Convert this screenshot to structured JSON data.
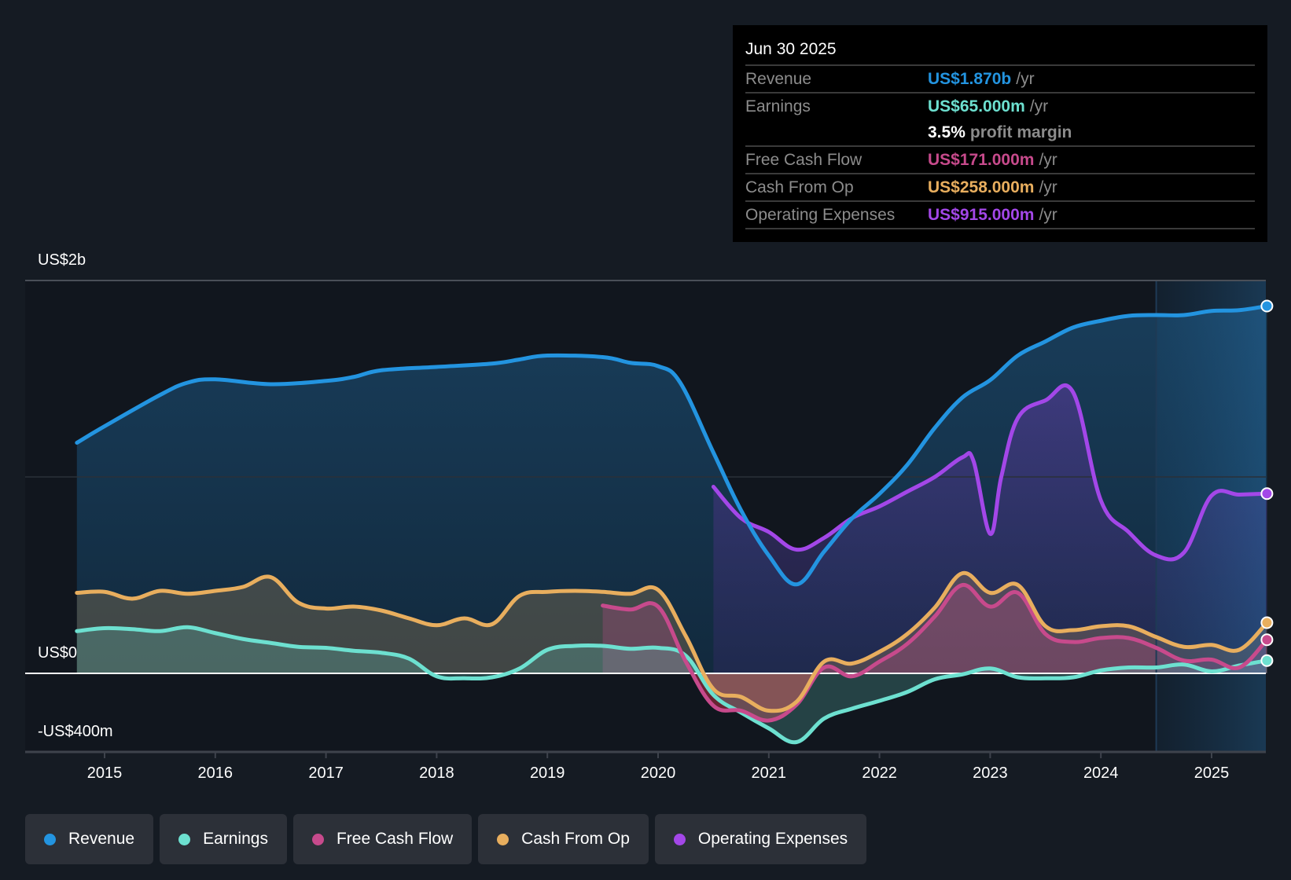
{
  "tooltip": {
    "date": "Jun 30 2025",
    "rows": [
      {
        "label": "Revenue",
        "value": "US$1.870b",
        "unit": "/yr",
        "color": "#2394e0"
      },
      {
        "label": "Earnings",
        "value": "US$65.000m",
        "unit": "/yr",
        "color": "#6de0d0"
      },
      {
        "label": "Free Cash Flow",
        "value": "US$171.000m",
        "unit": "/yr",
        "color": "#c74a8c"
      },
      {
        "label": "Cash From Op",
        "value": "US$258.000m",
        "unit": "/yr",
        "color": "#e8ae5e"
      },
      {
        "label": "Operating Expenses",
        "value": "US$915.000m",
        "unit": "/yr",
        "color": "#a347e8"
      }
    ],
    "margin_value": "3.5%",
    "margin_label": "profit margin"
  },
  "legend": [
    {
      "label": "Revenue",
      "color": "#2394e0"
    },
    {
      "label": "Earnings",
      "color": "#6de0d0"
    },
    {
      "label": "Free Cash Flow",
      "color": "#c74a8c"
    },
    {
      "label": "Cash From Op",
      "color": "#e8ae5e"
    },
    {
      "label": "Operating Expenses",
      "color": "#a347e8"
    }
  ],
  "chart_data": {
    "type": "area",
    "title": "",
    "xlabel": "",
    "ylabel": "",
    "y_tick_labels": [
      "US$2b",
      "US$0",
      "-US$400m"
    ],
    "ylim": [
      -400,
      2000
    ],
    "y_units": "US$ millions",
    "x_tick_labels": [
      "2015",
      "2016",
      "2017",
      "2018",
      "2019",
      "2020",
      "2021",
      "2022",
      "2023",
      "2024",
      "2025"
    ],
    "xlim": [
      2014.3,
      2025.5
    ],
    "highlight_range": [
      2024.5,
      2025.5
    ],
    "grid": true,
    "legend_position": "bottom-left",
    "series": [
      {
        "name": "Revenue",
        "color": "#2394e0",
        "x": [
          2014.75,
          2015.0,
          2015.5,
          2015.75,
          2016.0,
          2016.5,
          2017.0,
          2017.25,
          2017.5,
          2018.0,
          2018.5,
          2018.75,
          2019.0,
          2019.5,
          2019.75,
          2020.0,
          2020.2,
          2020.5,
          2020.75,
          2021.0,
          2021.25,
          2021.5,
          2021.75,
          2022.0,
          2022.25,
          2022.5,
          2022.75,
          2023.0,
          2023.25,
          2023.5,
          2023.75,
          2024.0,
          2024.25,
          2024.5,
          2024.75,
          2025.0,
          2025.25,
          2025.5
        ],
        "values": [
          1174,
          1258,
          1417,
          1480,
          1497,
          1472,
          1489,
          1509,
          1543,
          1560,
          1577,
          1598,
          1618,
          1610,
          1581,
          1564,
          1480,
          1124,
          830,
          600,
          453,
          620,
          788,
          914,
          1061,
          1250,
          1405,
          1493,
          1618,
          1690,
          1761,
          1795,
          1820,
          1824,
          1824,
          1845,
          1849,
          1870
        ]
      },
      {
        "name": "Earnings",
        "color": "#6de0d0",
        "x": [
          2014.75,
          2015.0,
          2015.25,
          2015.5,
          2015.75,
          2016.0,
          2016.25,
          2016.5,
          2016.75,
          2017.0,
          2017.25,
          2017.5,
          2017.75,
          2018.0,
          2018.25,
          2018.5,
          2018.75,
          2019.0,
          2019.25,
          2019.5,
          2019.75,
          2020.0,
          2020.25,
          2020.5,
          2020.75,
          2021.0,
          2021.25,
          2021.5,
          2021.75,
          2022.0,
          2022.25,
          2022.5,
          2022.75,
          2023.0,
          2023.25,
          2023.5,
          2023.75,
          2024.0,
          2024.25,
          2024.5,
          2024.75,
          2025.0,
          2025.25,
          2025.5
        ],
        "values": [
          215,
          230,
          225,
          215,
          235,
          205,
          175,
          155,
          135,
          130,
          115,
          105,
          75,
          -15,
          -25,
          -20,
          25,
          120,
          140,
          140,
          125,
          130,
          90,
          -110,
          -200,
          -280,
          -350,
          -230,
          -180,
          -140,
          -95,
          -30,
          -5,
          25,
          -20,
          -25,
          -20,
          15,
          30,
          30,
          45,
          10,
          40,
          65
        ]
      },
      {
        "name": "Free Cash Flow",
        "color": "#c74a8c",
        "x": [
          2019.5,
          2019.75,
          2020.0,
          2020.25,
          2020.5,
          2020.75,
          2021.0,
          2021.25,
          2021.5,
          2021.75,
          2022.0,
          2022.25,
          2022.5,
          2022.75,
          2023.0,
          2023.25,
          2023.5,
          2023.75,
          2024.0,
          2024.25,
          2024.5,
          2024.75,
          2025.0,
          2025.25,
          2025.5
        ],
        "values": [
          345,
          325,
          340,
          60,
          -165,
          -190,
          -240,
          -160,
          30,
          -15,
          60,
          150,
          290,
          450,
          340,
          410,
          200,
          160,
          180,
          180,
          130,
          65,
          70,
          30,
          171
        ]
      },
      {
        "name": "Cash From Op",
        "color": "#e8ae5e",
        "x": [
          2014.75,
          2015.0,
          2015.25,
          2015.5,
          2015.75,
          2016.0,
          2016.25,
          2016.5,
          2016.75,
          2017.0,
          2017.25,
          2017.5,
          2017.75,
          2018.0,
          2018.25,
          2018.5,
          2018.75,
          2019.0,
          2019.25,
          2019.5,
          2019.75,
          2020.0,
          2020.25,
          2020.5,
          2020.75,
          2021.0,
          2021.25,
          2021.5,
          2021.75,
          2022.0,
          2022.25,
          2022.5,
          2022.75,
          2023.0,
          2023.25,
          2023.5,
          2023.75,
          2024.0,
          2024.25,
          2024.5,
          2024.75,
          2025.0,
          2025.25,
          2025.5
        ],
        "values": [
          410,
          415,
          380,
          420,
          405,
          420,
          440,
          490,
          360,
          330,
          340,
          320,
          280,
          245,
          280,
          250,
          395,
          415,
          420,
          415,
          405,
          425,
          190,
          -80,
          -120,
          -190,
          -145,
          60,
          50,
          110,
          200,
          335,
          510,
          410,
          450,
          240,
          220,
          240,
          240,
          185,
          135,
          145,
          120,
          258
        ]
      },
      {
        "name": "Operating Expenses",
        "color": "#a347e8",
        "x": [
          2020.5,
          2020.75,
          2021.0,
          2021.25,
          2021.5,
          2021.75,
          2022.0,
          2022.25,
          2022.5,
          2022.75,
          2022.85,
          2023.0,
          2023.1,
          2023.25,
          2023.5,
          2023.75,
          2024.0,
          2024.25,
          2024.5,
          2024.75,
          2025.0,
          2025.25,
          2025.5
        ],
        "values": [
          950,
          790,
          720,
          630,
          690,
          790,
          850,
          925,
          1000,
          1100,
          1080,
          710,
          1000,
          1300,
          1390,
          1430,
          880,
          720,
          600,
          615,
          905,
          910,
          915
        ]
      }
    ]
  }
}
